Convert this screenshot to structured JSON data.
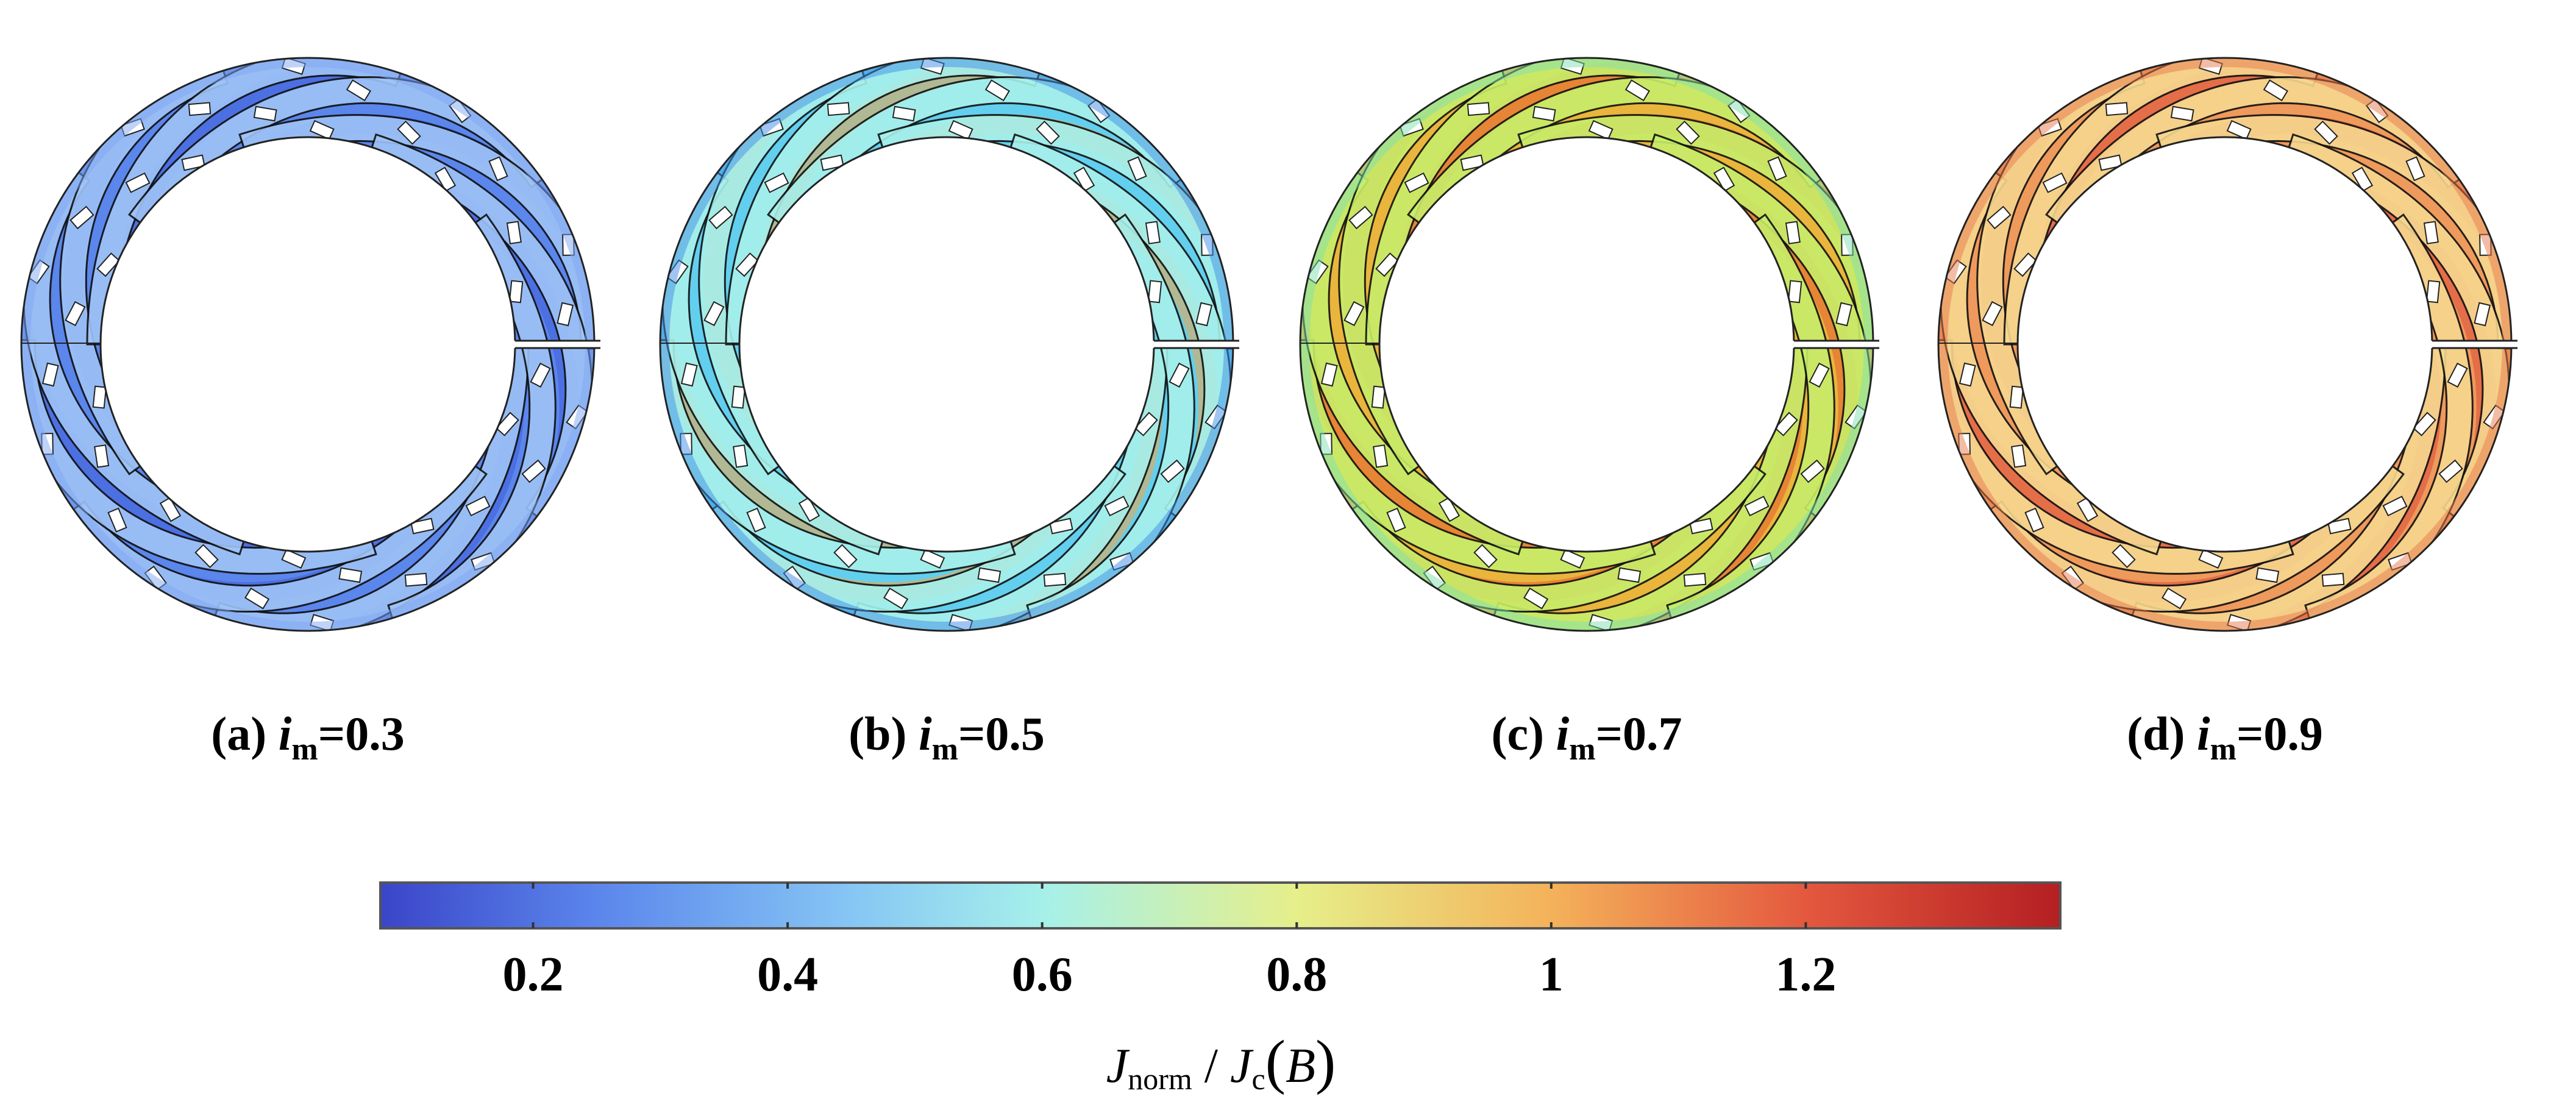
{
  "panels": [
    {
      "id": "a",
      "prefix": "(a) ",
      "var": "i",
      "sub": "m",
      "suffix": "=0.3",
      "value": 0.3,
      "colors": {
        "base": "#5b86ec",
        "dark": "#3f5fd9",
        "light": "#9fc4f7",
        "edge": "#7fa8f3"
      }
    },
    {
      "id": "b",
      "prefix": "(b) ",
      "var": "i",
      "sub": "m",
      "suffix": "=0.5",
      "value": 0.5,
      "colors": {
        "base": "#63cfee",
        "dark": "#f1a84a",
        "light": "#a8f0ea",
        "edge": "#3f8ee6"
      }
    },
    {
      "id": "c",
      "prefix": "(c) ",
      "var": "i",
      "sub": "m",
      "suffix": "=0.7",
      "value": 0.7,
      "colors": {
        "base": "#e9b53c",
        "dark": "#e35c2f",
        "light": "#c7ee6a",
        "edge": "#7fe0b0"
      }
    },
    {
      "id": "d",
      "prefix": "(d) ",
      "var": "i",
      "sub": "m",
      "suffix": "=0.9",
      "value": 0.9,
      "colors": {
        "base": "#ee9a5c",
        "dark": "#dc4b38",
        "light": "#f5d890",
        "edge": "#e87a4e"
      }
    }
  ],
  "colorbar": {
    "min": 0.08,
    "max": 1.4,
    "ticks": [
      {
        "value": 0.2,
        "label": "0.2"
      },
      {
        "value": 0.4,
        "label": "0.4"
      },
      {
        "value": 0.6,
        "label": "0.6"
      },
      {
        "value": 0.8,
        "label": "0.8"
      },
      {
        "value": 1.0,
        "label": "1"
      },
      {
        "value": 1.2,
        "label": "1.2"
      }
    ],
    "stops": [
      {
        "value": 0.08,
        "color": "#3a45c8"
      },
      {
        "value": 0.25,
        "color": "#5b86ec"
      },
      {
        "value": 0.45,
        "color": "#86c6f4"
      },
      {
        "value": 0.6,
        "color": "#a6f0ea"
      },
      {
        "value": 0.8,
        "color": "#e6ef8a"
      },
      {
        "value": 1.0,
        "color": "#f4b25a"
      },
      {
        "value": 1.2,
        "color": "#e4583e"
      },
      {
        "value": 1.4,
        "color": "#b41f22"
      }
    ],
    "title_main": "J",
    "title_main_sub": "norm",
    "title_sep": " / ",
    "title_den": "J",
    "title_den_sub": "c",
    "title_open": "(",
    "title_arg": "B",
    "title_close": ")"
  }
}
